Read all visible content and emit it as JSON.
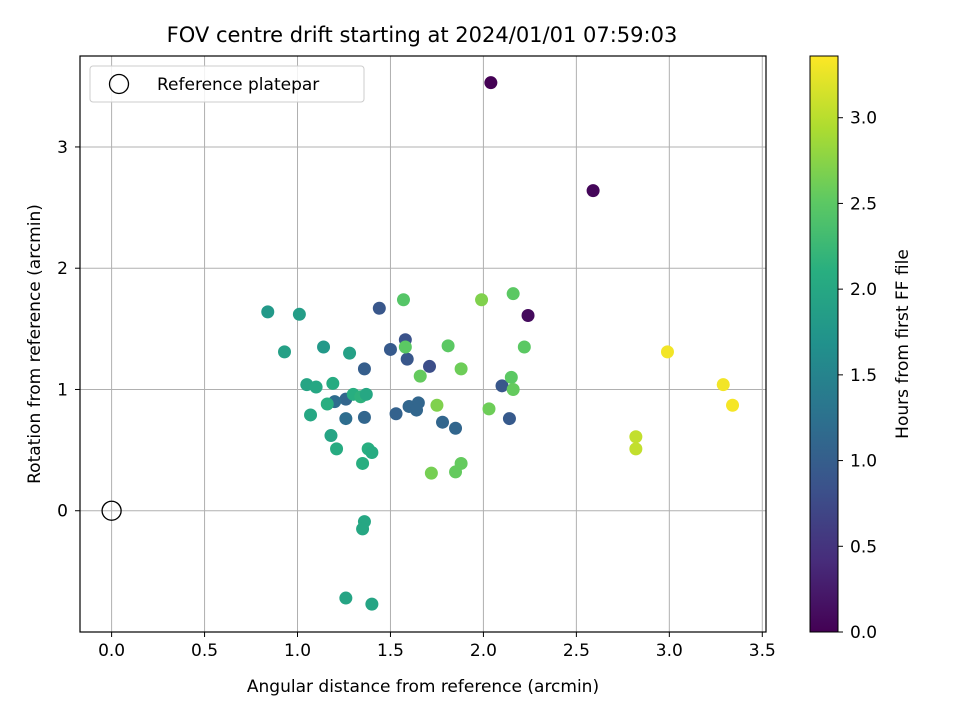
{
  "chart_data": {
    "type": "scatter",
    "title": "FOV centre drift starting at 2024/01/01 07:59:03",
    "xlabel": "Angular distance from reference (arcmin)",
    "ylabel": "Rotation from reference (arcmin)",
    "xlim": [
      -0.17,
      3.52
    ],
    "ylim": [
      -1.0,
      3.75
    ],
    "x_ticks": [
      "0.0",
      "0.5",
      "1.0",
      "1.5",
      "2.0",
      "2.5",
      "3.0",
      "3.5"
    ],
    "y_ticks": [
      "0",
      "1",
      "2",
      "3"
    ],
    "grid": true,
    "legend": {
      "placement": "top-left",
      "label": "Reference platepar"
    },
    "reference_point": {
      "x": 0.0,
      "y": 0.0
    },
    "colorbar": {
      "label": "Hours from first FF file",
      "range": [
        0.0,
        3.36
      ],
      "ticks": [
        "0.0",
        "0.5",
        "1.0",
        "1.5",
        "2.0",
        "2.5",
        "3.0"
      ],
      "colormap": "viridis"
    },
    "points": [
      {
        "x": 2.04,
        "y": 3.53,
        "c": 0.0
      },
      {
        "x": 2.59,
        "y": 2.64,
        "c": 0.05
      },
      {
        "x": 2.24,
        "y": 1.61,
        "c": 0.1
      },
      {
        "x": 1.44,
        "y": 1.67,
        "c": 0.9
      },
      {
        "x": 1.58,
        "y": 1.41,
        "c": 0.85
      },
      {
        "x": 1.5,
        "y": 1.33,
        "c": 0.95
      },
      {
        "x": 1.59,
        "y": 1.25,
        "c": 0.9
      },
      {
        "x": 1.71,
        "y": 1.19,
        "c": 0.8
      },
      {
        "x": 1.36,
        "y": 1.17,
        "c": 1.0
      },
      {
        "x": 2.1,
        "y": 1.03,
        "c": 0.9
      },
      {
        "x": 2.14,
        "y": 0.76,
        "c": 0.95
      },
      {
        "x": 1.26,
        "y": 0.92,
        "c": 1.1
      },
      {
        "x": 1.2,
        "y": 0.9,
        "c": 1.2
      },
      {
        "x": 1.26,
        "y": 0.76,
        "c": 1.2
      },
      {
        "x": 1.36,
        "y": 0.77,
        "c": 1.1
      },
      {
        "x": 1.53,
        "y": 0.8,
        "c": 1.05
      },
      {
        "x": 1.6,
        "y": 0.86,
        "c": 1.1
      },
      {
        "x": 1.65,
        "y": 0.89,
        "c": 1.1
      },
      {
        "x": 1.64,
        "y": 0.83,
        "c": 1.1
      },
      {
        "x": 1.78,
        "y": 0.73,
        "c": 1.1
      },
      {
        "x": 1.85,
        "y": 0.68,
        "c": 1.1
      },
      {
        "x": 0.84,
        "y": 1.64,
        "c": 1.8
      },
      {
        "x": 1.01,
        "y": 1.62,
        "c": 1.85
      },
      {
        "x": 0.93,
        "y": 1.31,
        "c": 1.9
      },
      {
        "x": 1.14,
        "y": 1.35,
        "c": 1.8
      },
      {
        "x": 1.28,
        "y": 1.3,
        "c": 1.9
      },
      {
        "x": 1.05,
        "y": 1.04,
        "c": 1.95
      },
      {
        "x": 1.1,
        "y": 1.02,
        "c": 2.0
      },
      {
        "x": 1.19,
        "y": 1.05,
        "c": 2.05
      },
      {
        "x": 1.3,
        "y": 0.96,
        "c": 2.1
      },
      {
        "x": 1.34,
        "y": 0.94,
        "c": 2.15
      },
      {
        "x": 1.37,
        "y": 0.96,
        "c": 2.0
      },
      {
        "x": 1.16,
        "y": 0.88,
        "c": 2.1
      },
      {
        "x": 1.07,
        "y": 0.79,
        "c": 2.0
      },
      {
        "x": 1.18,
        "y": 0.62,
        "c": 1.95
      },
      {
        "x": 1.21,
        "y": 0.51,
        "c": 2.05
      },
      {
        "x": 1.38,
        "y": 0.51,
        "c": 2.1
      },
      {
        "x": 1.4,
        "y": 0.48,
        "c": 2.05
      },
      {
        "x": 1.35,
        "y": 0.39,
        "c": 2.1
      },
      {
        "x": 1.36,
        "y": -0.09,
        "c": 2.0
      },
      {
        "x": 1.35,
        "y": -0.15,
        "c": 2.0
      },
      {
        "x": 1.26,
        "y": -0.72,
        "c": 1.95
      },
      {
        "x": 1.4,
        "y": -0.77,
        "c": 1.95
      },
      {
        "x": 1.57,
        "y": 1.74,
        "c": 2.45
      },
      {
        "x": 1.58,
        "y": 1.35,
        "c": 2.5
      },
      {
        "x": 1.81,
        "y": 1.36,
        "c": 2.5
      },
      {
        "x": 1.66,
        "y": 1.11,
        "c": 2.55
      },
      {
        "x": 1.88,
        "y": 1.17,
        "c": 2.6
      },
      {
        "x": 1.99,
        "y": 1.74,
        "c": 2.7
      },
      {
        "x": 2.16,
        "y": 1.79,
        "c": 2.5
      },
      {
        "x": 2.22,
        "y": 1.35,
        "c": 2.5
      },
      {
        "x": 2.15,
        "y": 1.1,
        "c": 2.5
      },
      {
        "x": 2.16,
        "y": 1.0,
        "c": 2.55
      },
      {
        "x": 2.03,
        "y": 0.84,
        "c": 2.6
      },
      {
        "x": 1.75,
        "y": 0.87,
        "c": 2.7
      },
      {
        "x": 1.72,
        "y": 0.31,
        "c": 2.65
      },
      {
        "x": 1.85,
        "y": 0.32,
        "c": 2.55
      },
      {
        "x": 1.88,
        "y": 0.39,
        "c": 2.55
      },
      {
        "x": 2.82,
        "y": 0.61,
        "c": 3.05
      },
      {
        "x": 2.82,
        "y": 0.51,
        "c": 3.05
      },
      {
        "x": 2.99,
        "y": 1.31,
        "c": 3.3
      },
      {
        "x": 3.29,
        "y": 1.04,
        "c": 3.3
      },
      {
        "x": 3.34,
        "y": 0.87,
        "c": 3.32
      }
    ]
  }
}
